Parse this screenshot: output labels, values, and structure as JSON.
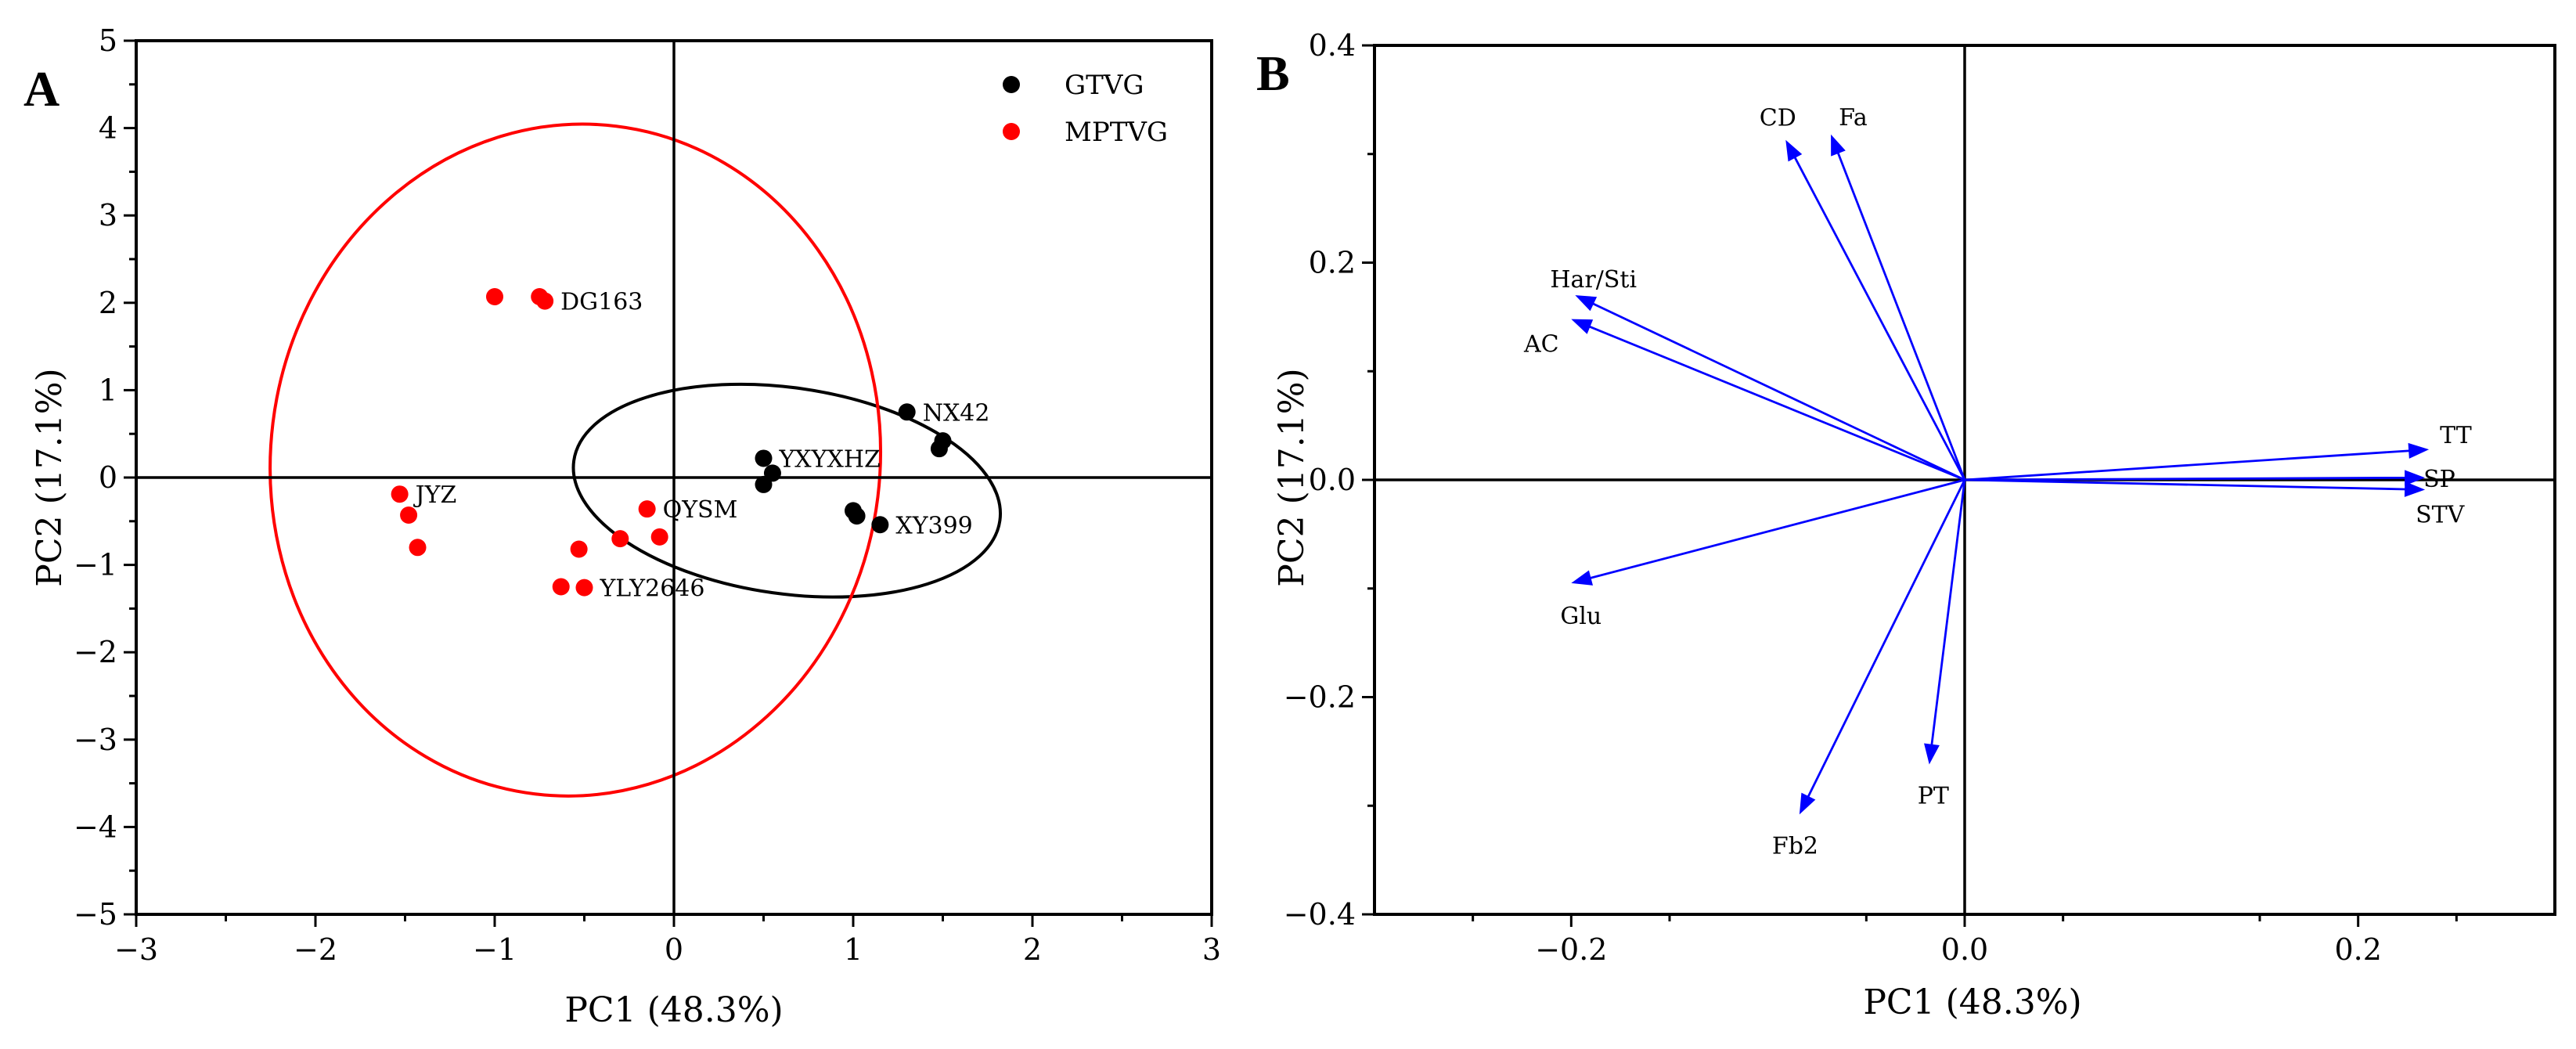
{
  "chart_data": [
    {
      "type": "scatter",
      "panel": "A",
      "xlabel": "PC1 (48.3%)",
      "ylabel": "PC2 (17.1%)",
      "xlim": [
        -3,
        3
      ],
      "ylim": [
        -5,
        5
      ],
      "xticks": [
        -3,
        -2,
        -1,
        0,
        1,
        2,
        3
      ],
      "yticks": [
        -5,
        -4,
        -3,
        -2,
        -1,
        0,
        1,
        2,
        3,
        4,
        5
      ],
      "legend_position": "top-right",
      "series": [
        {
          "name": "GTVG",
          "color": "#000000",
          "points": [
            {
              "x": 1.3,
              "y": 0.75,
              "label": "NX42"
            },
            {
              "x": 1.5,
              "y": 0.42
            },
            {
              "x": 1.48,
              "y": 0.33
            },
            {
              "x": 0.5,
              "y": 0.22,
              "label": "YXYXHZ"
            },
            {
              "x": 0.55,
              "y": 0.05
            },
            {
              "x": 0.5,
              "y": -0.08
            },
            {
              "x": 1.0,
              "y": -0.38
            },
            {
              "x": 1.02,
              "y": -0.44
            },
            {
              "x": 1.15,
              "y": -0.54,
              "label": "XY399"
            }
          ],
          "ellipse": {
            "cx": 0.63,
            "cy": -0.15,
            "rx": 1.2,
            "ry": 1.18,
            "angle": 8
          }
        },
        {
          "name": "MPTVG",
          "color": "#ff0000",
          "points": [
            {
              "x": -1.0,
              "y": 2.07
            },
            {
              "x": -0.75,
              "y": 2.07
            },
            {
              "x": -0.72,
              "y": 2.02,
              "label": "DG163"
            },
            {
              "x": -1.53,
              "y": -0.19,
              "label": "JYZ"
            },
            {
              "x": -1.48,
              "y": -0.43
            },
            {
              "x": -1.43,
              "y": -0.8
            },
            {
              "x": -0.15,
              "y": -0.36,
              "label": "QYSM"
            },
            {
              "x": -0.08,
              "y": -0.68
            },
            {
              "x": -0.3,
              "y": -0.7
            },
            {
              "x": -0.53,
              "y": -0.82
            },
            {
              "x": -0.63,
              "y": -1.25
            },
            {
              "x": -0.5,
              "y": -1.26,
              "label": "YLY2646"
            }
          ],
          "ellipse": {
            "cx": -0.55,
            "cy": 0.2,
            "rx": 1.7,
            "ry": 3.85,
            "angle": 7
          }
        }
      ]
    },
    {
      "type": "biplot",
      "panel": "B",
      "xlabel": "PC1 (48.3%)",
      "ylabel": "PC2 (17.1%)",
      "xlim": [
        -0.3,
        0.3
      ],
      "ylim": [
        -0.4,
        0.4
      ],
      "xticks": [
        -0.2,
        0.0,
        0.2
      ],
      "yticks": [
        -0.4,
        -0.2,
        0.0,
        0.2,
        0.4
      ],
      "xtick_labels": [
        "-0.2",
        "0.0",
        "0.2"
      ],
      "ytick_labels": [
        "-0.4",
        "-0.2",
        "0.0",
        "0.2",
        "0.4"
      ],
      "arrow_color": "#0000ff",
      "vectors": [
        {
          "name": "CD",
          "x": -0.091,
          "y": 0.313
        },
        {
          "name": "Fa",
          "x": -0.068,
          "y": 0.318
        },
        {
          "name": "Har/Sti",
          "x": -0.198,
          "y": 0.17
        },
        {
          "name": "AC",
          "x": -0.2,
          "y": 0.148
        },
        {
          "name": "TT",
          "x": 0.236,
          "y": 0.028
        },
        {
          "name": "SP",
          "x": 0.234,
          "y": 0.002
        },
        {
          "name": "STV",
          "x": 0.234,
          "y": -0.009
        },
        {
          "name": "Glu",
          "x": -0.2,
          "y": -0.095
        },
        {
          "name": "PT",
          "x": -0.018,
          "y": -0.262
        },
        {
          "name": "Fb2",
          "x": -0.084,
          "y": -0.308
        }
      ]
    }
  ]
}
